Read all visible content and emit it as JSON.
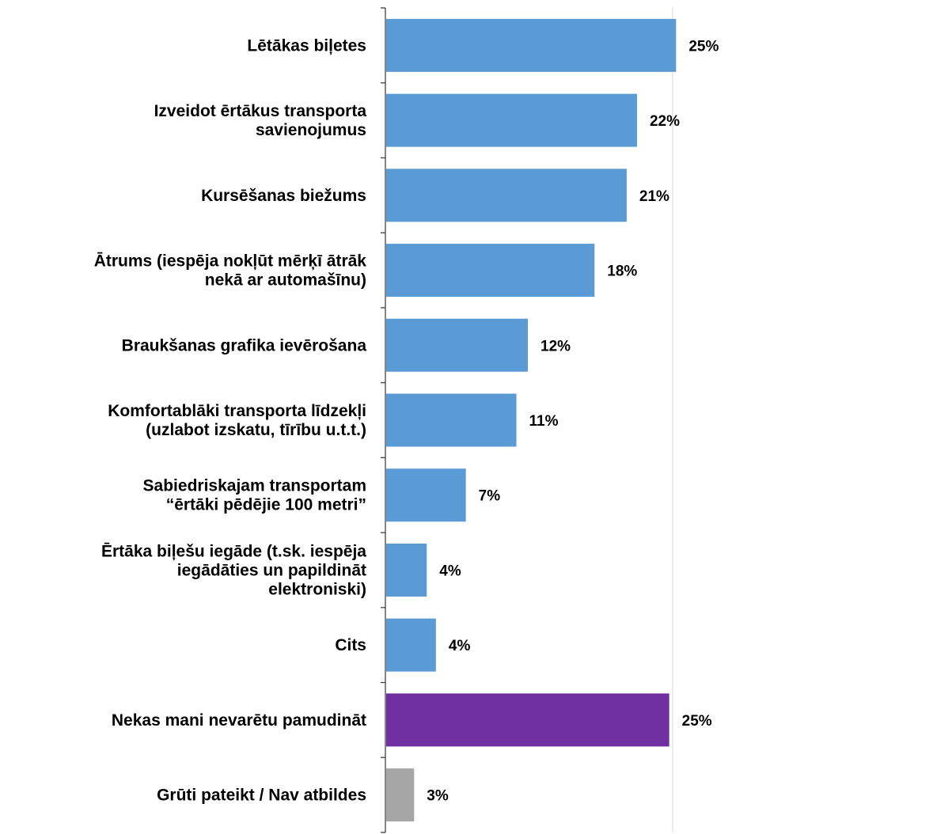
{
  "chart_data": {
    "type": "bar",
    "orientation": "horizontal",
    "categories": [
      [
        "Lētākas biļetes"
      ],
      [
        "Izveidot ērtākus transporta",
        "savienojumus"
      ],
      [
        "Kursēšanas biežums"
      ],
      [
        "Ātrums (iespēja nokļūt mērķī ātrāk",
        "nekā ar automašīnu)"
      ],
      [
        "Braukšanas grafika ievērošana"
      ],
      [
        "Komfortablāki transporta līdzekļi",
        "(uzlabot izskatu, tīrību u.t.t.)"
      ],
      [
        "Sabiedriskajam transportam",
        "“ērtāki pēdējie 100 metri”"
      ],
      [
        "Ērtāka biļešu iegāde (t.sk. iespēja",
        "iegādāties un papildināt",
        "elektroniski)"
      ],
      [
        "Cits"
      ],
      [
        "Nekas mani nevarētu pamudināt"
      ],
      [
        "Grūti pateikt / Nav atbildes"
      ]
    ],
    "values": [
      25.3,
      21.9,
      21.0,
      18.2,
      12.4,
      11.4,
      7.0,
      3.6,
      4.4,
      24.7,
      2.5
    ],
    "value_labels": [
      "25%",
      "22%",
      "21%",
      "18%",
      "12%",
      "11%",
      "7%",
      "4%",
      "4%",
      "25%",
      "3%"
    ],
    "colors": [
      "#5b9bd5",
      "#5b9bd5",
      "#5b9bd5",
      "#5b9bd5",
      "#5b9bd5",
      "#5b9bd5",
      "#5b9bd5",
      "#5b9bd5",
      "#5b9bd5",
      "#7030a0",
      "#a6a6a6"
    ],
    "xlim": [
      0,
      50
    ],
    "gridlines": [
      25,
      50
    ],
    "grid": true,
    "legend": "none",
    "title": "",
    "xlabel": "",
    "ylabel": ""
  }
}
